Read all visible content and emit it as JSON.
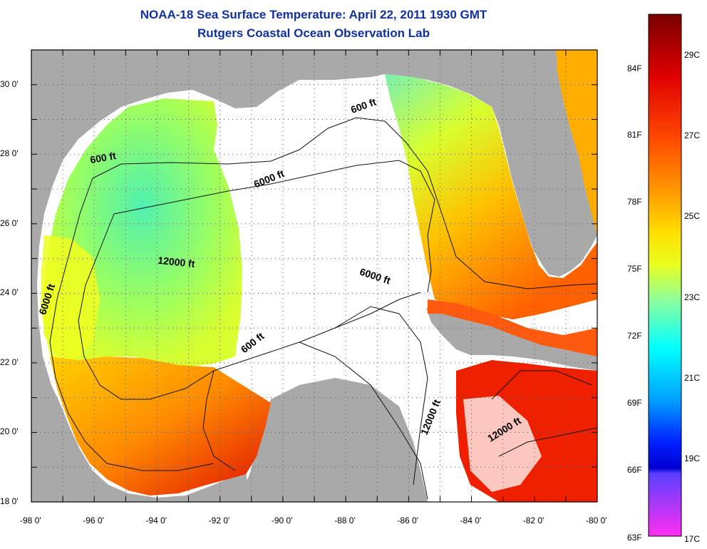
{
  "title": "NOAA-18 Sea Surface Temperature:  April 22, 2011 1930 GMT",
  "subtitle": "Rutgers Coastal Ocean Observation Lab",
  "map": {
    "lon_ticks": [
      "-98 0'",
      "-96 0'",
      "-94 0'",
      "-92 0'",
      "-90 0'",
      "-88 0'",
      "-86 0'",
      "-84 0'",
      "-82 0'",
      "-80 0'"
    ],
    "lat_ticks": [
      "30 0'",
      "28 0'",
      "26 0'",
      "24 0'",
      "22 0'",
      "20 0'",
      "18 0'"
    ],
    "lon_range": [
      -98,
      -80
    ],
    "lat_range": [
      18,
      31
    ],
    "grid": "dotted",
    "contour_labels": [
      {
        "text": "600 ft",
        "lon": -95.7,
        "lat": 27.8,
        "angle": -10
      },
      {
        "text": "6000 ft",
        "lon": -90.4,
        "lat": 27.2,
        "angle": -22
      },
      {
        "text": "600 ft",
        "lon": -87.4,
        "lat": 29.3,
        "angle": -20
      },
      {
        "text": "12000 ft",
        "lon": -93.4,
        "lat": 24.8,
        "angle": 6
      },
      {
        "text": "6000 ft",
        "lon": -87.1,
        "lat": 24.4,
        "angle": 18
      },
      {
        "text": "6000 ft",
        "lon": -97.4,
        "lat": 23.8,
        "angle": -72
      },
      {
        "text": "600 ft",
        "lon": -90.9,
        "lat": 22.5,
        "angle": -38
      },
      {
        "text": "12000 ft",
        "lon": -85.2,
        "lat": 20.4,
        "angle": -68
      },
      {
        "text": "12000 ft",
        "lon": -82.9,
        "lat": 20.0,
        "angle": -32
      }
    ]
  },
  "colorbar": {
    "f_labels": [
      "84F",
      "81F",
      "78F",
      "75F",
      "72F",
      "69F",
      "66F",
      "63F"
    ],
    "c_labels": [
      "29C",
      "27C",
      "25C",
      "23C",
      "21C",
      "19C",
      "17C"
    ],
    "colors": [
      "#7a0000",
      "#cc0000",
      "#ff2a00",
      "#ff7800",
      "#ffb000",
      "#ffff00",
      "#b8ff3a",
      "#4df7b0",
      "#00ffff",
      "#00a8ff",
      "#0030ff",
      "#0000cc",
      "#8a3cff",
      "#ff2ef0"
    ]
  }
}
